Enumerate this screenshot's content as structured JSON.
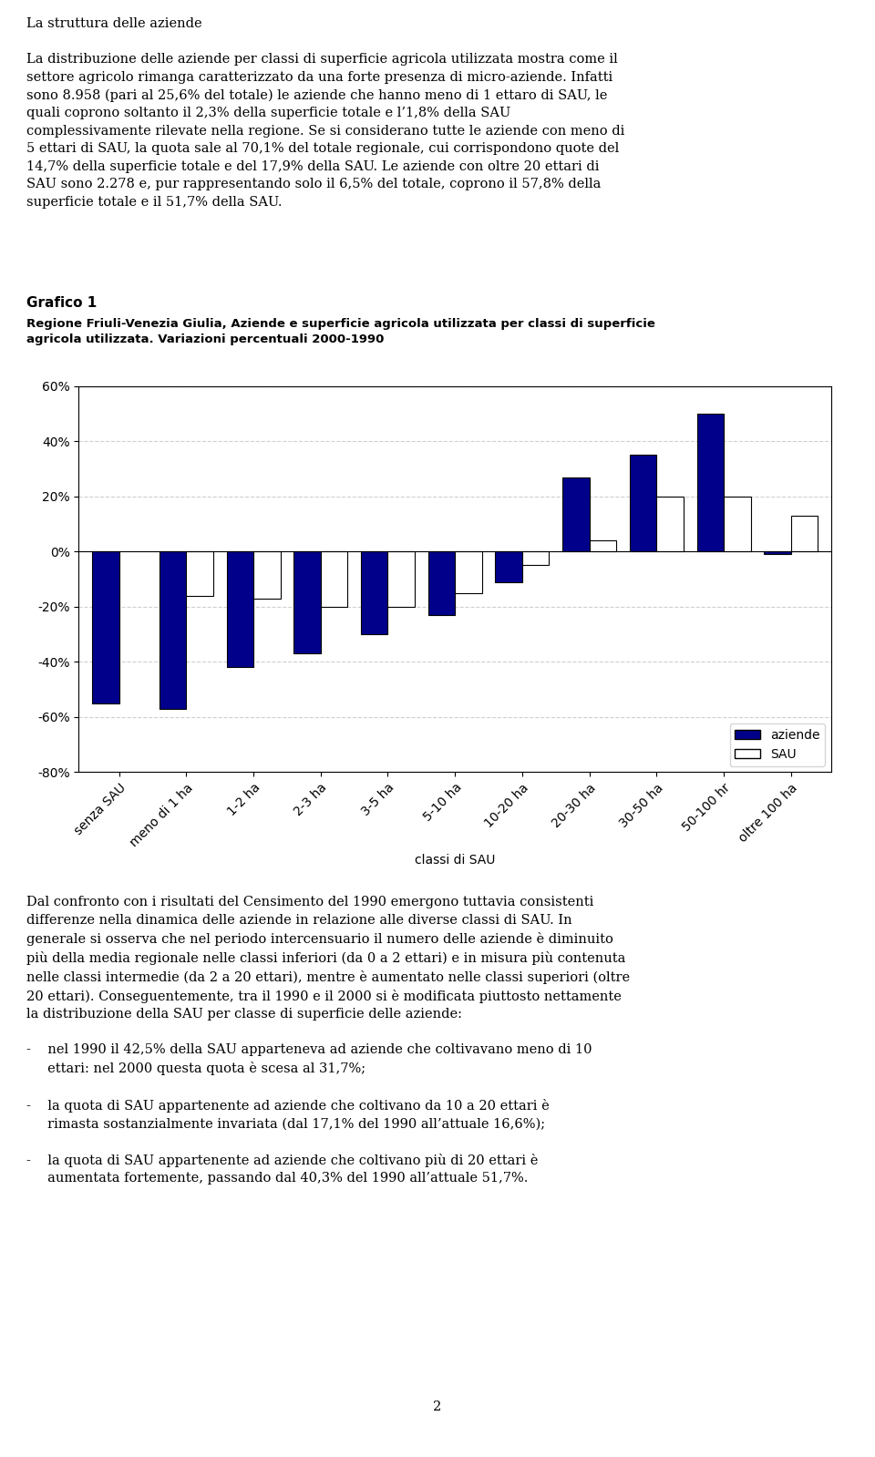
{
  "chart_data": {
    "type": "bar",
    "title": "Grafico 1",
    "subtitle": "Regione Friuli-Venezia Giulia, Aziende e superficie agricola utilizzata per classi di superficie\nagricola utilizzata. Variazioni percentuali 2000-1990",
    "categories": [
      "senza SAU",
      "meno di 1 ha",
      "1-2 ha",
      "2-3 ha",
      "3-5 ha",
      "5-10 ha",
      "10-20 ha",
      "20-30 ha",
      "30-50 ha",
      "50-100 hr",
      "oltre 100 ha"
    ],
    "series": [
      {
        "name": "aziende",
        "color": "#00008B",
        "values": [
          -55,
          -57,
          -42,
          -37,
          -30,
          -23,
          -11,
          27,
          35,
          50,
          -1
        ]
      },
      {
        "name": "SAU",
        "color": "#FFFFFF",
        "values": [
          null,
          -16,
          -17,
          -20,
          -20,
          -15,
          -5,
          4,
          20,
          20,
          13
        ]
      }
    ],
    "xlabel": "classi di SAU",
    "ylim": [
      -80,
      60
    ],
    "yticks": [
      {
        "value": -80,
        "label": "-80%"
      },
      {
        "value": -60,
        "label": "-60%"
      },
      {
        "value": -40,
        "label": "-40%"
      },
      {
        "value": -20,
        "label": "-20%"
      },
      {
        "value": 0,
        "label": "0%"
      },
      {
        "value": 20,
        "label": "20%"
      },
      {
        "value": 40,
        "label": "40%"
      },
      {
        "value": 60,
        "label": "60%"
      }
    ],
    "grid": true,
    "legend": "lower right",
    "annotations": [
      "La struttura delle aziende\n\nLa distribuzione delle aziende per classi di superficie agricola utilizzata mostra come il\nsettore agricolo rimanga caratterizzato da una forte presenza di micro-aziende. Infatti\nsono 8.958 (pari al 25,6% del totale) le aziende che hanno meno di 1 ettaro di SAU, le\nquali coprono soltanto il 2,3% della superficie totale e l’1,8% della SAU\ncomplessivamente rilevate nella regione. Se si considerano tutte le aziende con meno di\n5 ettari di SAU, la quota sale al 70,1% del totale regionale, cui corrispondono quote del\n14,7% della superficie totale e del 17,9% della SAU. Le aziende con oltre 20 ettari di\nSAU sono 2.278 e, pur rappresentando solo il 6,5% del totale, coprono il 57,8% della\nsuperficie totale e il 51,7% della SAU.",
      "Dal confronto con i risultati del Censimento del 1990 emergono tuttavia consistenti\ndifferenze nella dinamica delle aziende in relazione alle diverse classi di SAU. In\ngenerale si osserva che nel periodo intercensuario il numero delle aziende è diminuito\npiù della media regionale nelle classi inferiori (da 0 a 2 ettari) e in misura più contenuta\nnelle classi intermedie (da 2 a 20 ettari), mentre è aumentato nelle classi superiori (oltre\n20 ettari). Conseguentemente, tra il 1990 e il 2000 si è modificata piuttosto nettamente\nla distribuzione della SAU per classe di superficie delle aziende:\n\n-    nel 1990 il 42,5% della SAU apparteneva ad aziende che coltivavano meno di 10\n     ettari: nel 2000 questa quota è scesa al 31,7%;\n\n-    la quota di SAU appartenente ad aziende che coltivano da 10 a 20 ettari è\n     rimasta sostanzialmente invariata (dal 17,1% del 1990 all’attuale 16,6%);\n\n-    la quota di SAU appartenente ad aziende che coltivano più di 20 ettari è\n     aumentata fortemente, passando dal 40,3% del 1990 all’attuale 51,7%.",
      "2"
    ]
  }
}
